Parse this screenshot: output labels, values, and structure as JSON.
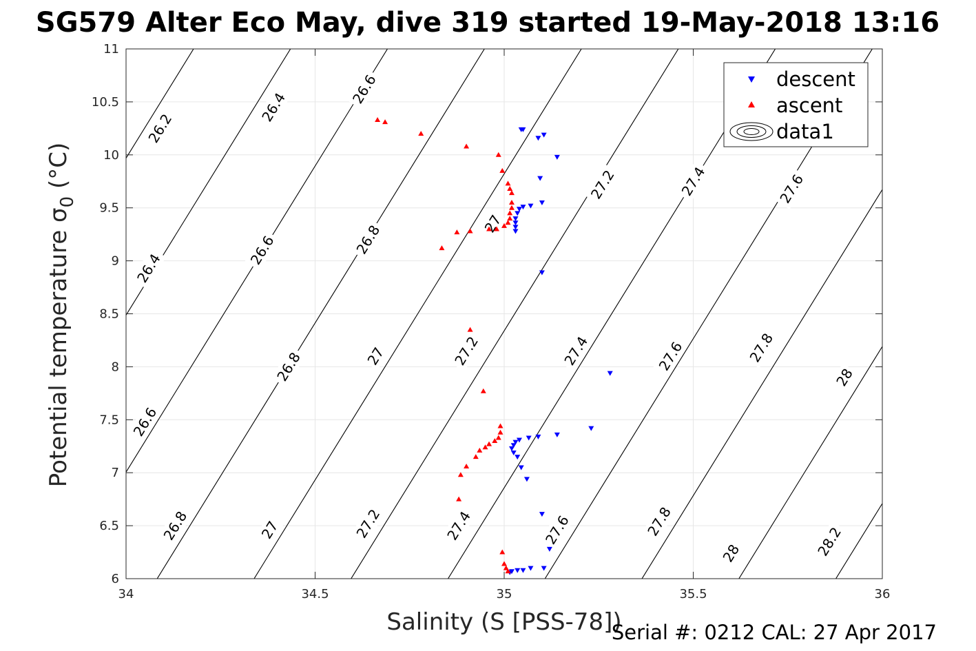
{
  "chart_data": {
    "type": "scatter",
    "title": "SG579 Alter Eco May, dive 319 started 19-May-2018 13:16",
    "xlabel": "Salinity (S [PSS-78])",
    "ylabel": "Potential temperature σ",
    "ylabel_subscript": "0",
    "ylabel_unit": " (°C)",
    "xlim": [
      34,
      36
    ],
    "ylim": [
      6,
      11
    ],
    "x_ticks": [
      34,
      34.5,
      35,
      35.5,
      36
    ],
    "y_ticks": [
      6,
      6.5,
      7,
      7.5,
      8,
      8.5,
      9,
      9.5,
      10,
      10.5,
      11
    ],
    "grid": true,
    "legend_position": "top-right",
    "footer": "Serial #: 0212  CAL: 27 Apr 2017",
    "contours": {
      "levels": [
        26.2,
        26.4,
        26.6,
        26.8,
        27,
        27.2,
        27.4,
        27.6,
        27.8,
        28,
        28.2
      ],
      "labels": [
        {
          "text": "26.2",
          "x": 34.09,
          "y": 10.25
        },
        {
          "text": "26.4",
          "x": 34.39,
          "y": 10.45
        },
        {
          "text": "26.6",
          "x": 34.63,
          "y": 10.62
        },
        {
          "text": "26.4",
          "x": 34.06,
          "y": 8.93
        },
        {
          "text": "26.6",
          "x": 34.36,
          "y": 9.1
        },
        {
          "text": "26.8",
          "x": 34.64,
          "y": 9.2
        },
        {
          "text": "27",
          "x": 34.97,
          "y": 9.35
        },
        {
          "text": "27.2",
          "x": 35.26,
          "y": 9.72
        },
        {
          "text": "27.4",
          "x": 35.5,
          "y": 9.75
        },
        {
          "text": "27.6",
          "x": 35.76,
          "y": 9.68
        },
        {
          "text": "26.6",
          "x": 34.05,
          "y": 7.48
        },
        {
          "text": "26.8",
          "x": 34.43,
          "y": 8.0
        },
        {
          "text": "27",
          "x": 34.66,
          "y": 8.1
        },
        {
          "text": "27.2",
          "x": 34.9,
          "y": 8.15
        },
        {
          "text": "27.4",
          "x": 35.19,
          "y": 8.15
        },
        {
          "text": "27.6",
          "x": 35.44,
          "y": 8.1
        },
        {
          "text": "27.8",
          "x": 35.68,
          "y": 8.18
        },
        {
          "text": "28",
          "x": 35.9,
          "y": 7.9
        },
        {
          "text": "26.8",
          "x": 34.13,
          "y": 6.5
        },
        {
          "text": "27",
          "x": 34.38,
          "y": 6.46
        },
        {
          "text": "27.2",
          "x": 34.64,
          "y": 6.52
        },
        {
          "text": "27.4",
          "x": 34.88,
          "y": 6.5
        },
        {
          "text": "27.6",
          "x": 35.14,
          "y": 6.46
        },
        {
          "text": "27.8",
          "x": 35.41,
          "y": 6.54
        },
        {
          "text": "28",
          "x": 35.6,
          "y": 6.24
        },
        {
          "text": "28.2",
          "x": 35.86,
          "y": 6.35
        }
      ]
    },
    "series": [
      {
        "name": "descent",
        "color": "#0000ff",
        "marker": "triangle-down",
        "points": [
          [
            35.045,
            10.24
          ],
          [
            35.05,
            10.24
          ],
          [
            35.09,
            10.16
          ],
          [
            35.105,
            10.19
          ],
          [
            35.14,
            9.98
          ],
          [
            35.095,
            9.78
          ],
          [
            35.1,
            9.55
          ],
          [
            35.07,
            9.52
          ],
          [
            35.05,
            9.51
          ],
          [
            35.04,
            9.49
          ],
          [
            35.035,
            9.45
          ],
          [
            35.03,
            9.4
          ],
          [
            35.03,
            9.36
          ],
          [
            35.03,
            9.32
          ],
          [
            35.03,
            9.28
          ],
          [
            35.1,
            8.89
          ],
          [
            35.28,
            7.94
          ],
          [
            35.23,
            7.42
          ],
          [
            35.14,
            7.36
          ],
          [
            35.09,
            7.34
          ],
          [
            35.065,
            7.33
          ],
          [
            35.04,
            7.31
          ],
          [
            35.03,
            7.29
          ],
          [
            35.025,
            7.26
          ],
          [
            35.02,
            7.23
          ],
          [
            35.025,
            7.19
          ],
          [
            35.035,
            7.15
          ],
          [
            35.045,
            7.05
          ],
          [
            35.06,
            6.94
          ],
          [
            35.1,
            6.61
          ],
          [
            35.12,
            6.28
          ],
          [
            35.105,
            6.1
          ],
          [
            35.07,
            6.1
          ],
          [
            35.05,
            6.08
          ],
          [
            35.035,
            6.08
          ],
          [
            35.02,
            6.07
          ],
          [
            35.015,
            6.06
          ]
        ]
      },
      {
        "name": "ascent",
        "color": "#ff0000",
        "marker": "triangle-up",
        "points": [
          [
            34.665,
            10.33
          ],
          [
            34.685,
            10.31
          ],
          [
            34.78,
            10.2
          ],
          [
            34.9,
            10.08
          ],
          [
            34.985,
            10.0
          ],
          [
            34.995,
            9.85
          ],
          [
            35.01,
            9.73
          ],
          [
            35.015,
            9.68
          ],
          [
            35.02,
            9.64
          ],
          [
            35.02,
            9.55
          ],
          [
            35.02,
            9.5
          ],
          [
            35.015,
            9.45
          ],
          [
            35.015,
            9.4
          ],
          [
            35.01,
            9.36
          ],
          [
            35.0,
            9.33
          ],
          [
            34.98,
            9.3
          ],
          [
            34.96,
            9.3
          ],
          [
            34.91,
            9.28
          ],
          [
            34.875,
            9.27
          ],
          [
            34.835,
            9.12
          ],
          [
            34.91,
            8.35
          ],
          [
            34.945,
            7.77
          ],
          [
            34.99,
            7.44
          ],
          [
            34.99,
            7.38
          ],
          [
            34.985,
            7.33
          ],
          [
            34.975,
            7.3
          ],
          [
            34.96,
            7.27
          ],
          [
            34.95,
            7.24
          ],
          [
            34.935,
            7.21
          ],
          [
            34.925,
            7.15
          ],
          [
            34.9,
            7.06
          ],
          [
            34.885,
            6.98
          ],
          [
            34.88,
            6.75
          ],
          [
            34.995,
            6.25
          ],
          [
            35.0,
            6.14
          ],
          [
            35.005,
            6.1
          ],
          [
            35.01,
            6.07
          ]
        ]
      }
    ],
    "legend_entries": [
      {
        "label": "descent",
        "symbol": "triangle-down",
        "color": "#0000ff"
      },
      {
        "label": "ascent",
        "symbol": "triangle-up",
        "color": "#ff0000"
      },
      {
        "label": "data1",
        "symbol": "contour"
      }
    ]
  }
}
